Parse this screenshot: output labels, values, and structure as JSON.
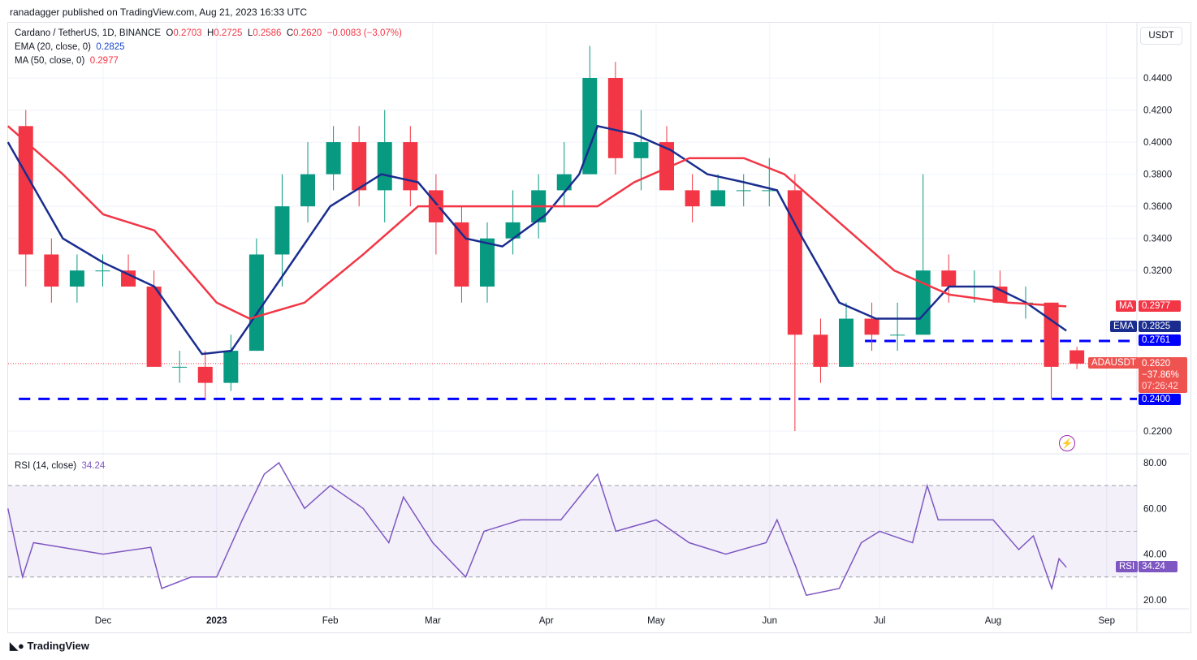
{
  "header": {
    "published": "ranadagger published on TradingView.com, Aug 21, 2023 16:33 UTC"
  },
  "legend": {
    "symbol": "Cardano / TetherUS, 1D, BINANCE",
    "o_label": "O",
    "o": "0.2703",
    "h_label": "H",
    "h": "0.2725",
    "l_label": "L",
    "l": "0.2586",
    "c_label": "C",
    "c": "0.2620",
    "change": "−0.0083 (−3.07%)",
    "ema_label": "EMA (20, close, 0)",
    "ema": "0.2825",
    "ma_label": "MA (50, close, 0)",
    "ma": "0.2977",
    "rsi_label": "RSI (14, close)",
    "rsi": "34.24"
  },
  "scale": {
    "currency": "USDT",
    "ma_tag": "MA",
    "ma_val": "0.2977",
    "ema_tag": "EMA",
    "ema_val": "0.2825",
    "lvl1": "0.2761",
    "sym_tag": "ADAUSDT",
    "price": "0.2620",
    "pct": "−37.86%",
    "countdown": "07:26:42",
    "lvl2": "0.2400",
    "rsi_tag": "RSI",
    "rsi_val": "34.24"
  },
  "logo": "TradingView",
  "colors": {
    "up": "#089981",
    "down": "#f23645",
    "ema": "#1a2d8f",
    "ma": "#f23645",
    "rsi": "#7e57c2",
    "level": "#0000ff"
  },
  "chart_data": [
    {
      "type": "candlestick",
      "title": "Cardano / TetherUS, 1D, BINANCE",
      "ylabel": "USDT",
      "ylim": [
        0.19,
        0.46
      ],
      "price_ticks": [
        0.22,
        0.32,
        0.34,
        0.36,
        0.38,
        0.4,
        0.42,
        0.44
      ],
      "time_ticks": [
        [
          "2022-12-01",
          "Dec"
        ],
        [
          "2023-01-01",
          "2023"
        ],
        [
          "2023-02-01",
          "Feb"
        ],
        [
          "2023-03-01",
          "Mar"
        ],
        [
          "2023-04-01",
          "Apr"
        ],
        [
          "2023-05-01",
          "May"
        ],
        [
          "2023-06-01",
          "Jun"
        ],
        [
          "2023-07-01",
          "Jul"
        ],
        [
          "2023-08-01",
          "Aug"
        ],
        [
          "2023-09-01",
          "Sep"
        ]
      ],
      "levels": [
        {
          "value": 0.2761,
          "from": "2023-06-27"
        },
        {
          "value": 0.24,
          "from": "2022-11-08"
        }
      ],
      "candles_weekly": [
        [
          "2022-11-07",
          0.41,
          0.42,
          0.31,
          0.33
        ],
        [
          "2022-11-14",
          0.33,
          0.34,
          0.3,
          0.31
        ],
        [
          "2022-11-21",
          0.31,
          0.33,
          0.3,
          0.32
        ],
        [
          "2022-11-28",
          0.32,
          0.33,
          0.31,
          0.32
        ],
        [
          "2022-12-05",
          0.32,
          0.33,
          0.31,
          0.31
        ],
        [
          "2022-12-12",
          0.31,
          0.32,
          0.26,
          0.26
        ],
        [
          "2022-12-19",
          0.26,
          0.27,
          0.25,
          0.26
        ],
        [
          "2022-12-26",
          0.26,
          0.27,
          0.24,
          0.25
        ],
        [
          "2023-01-02",
          0.25,
          0.28,
          0.245,
          0.27
        ],
        [
          "2023-01-09",
          0.27,
          0.34,
          0.27,
          0.33
        ],
        [
          "2023-01-16",
          0.33,
          0.38,
          0.31,
          0.36
        ],
        [
          "2023-01-23",
          0.36,
          0.4,
          0.35,
          0.38
        ],
        [
          "2023-01-30",
          0.38,
          0.41,
          0.37,
          0.4
        ],
        [
          "2023-02-06",
          0.4,
          0.41,
          0.36,
          0.37
        ],
        [
          "2023-02-13",
          0.37,
          0.42,
          0.35,
          0.4
        ],
        [
          "2023-02-20",
          0.4,
          0.41,
          0.36,
          0.37
        ],
        [
          "2023-02-27",
          0.37,
          0.38,
          0.33,
          0.35
        ],
        [
          "2023-03-06",
          0.35,
          0.36,
          0.3,
          0.31
        ],
        [
          "2023-03-13",
          0.31,
          0.35,
          0.3,
          0.34
        ],
        [
          "2023-03-20",
          0.34,
          0.37,
          0.33,
          0.35
        ],
        [
          "2023-03-27",
          0.35,
          0.38,
          0.34,
          0.37
        ],
        [
          "2023-04-03",
          0.37,
          0.4,
          0.36,
          0.38
        ],
        [
          "2023-04-10",
          0.38,
          0.46,
          0.38,
          0.44
        ],
        [
          "2023-04-17",
          0.44,
          0.45,
          0.38,
          0.39
        ],
        [
          "2023-04-24",
          0.39,
          0.42,
          0.37,
          0.4
        ],
        [
          "2023-05-01",
          0.4,
          0.41,
          0.37,
          0.37
        ],
        [
          "2023-05-08",
          0.37,
          0.38,
          0.35,
          0.36
        ],
        [
          "2023-05-15",
          0.36,
          0.38,
          0.36,
          0.37
        ],
        [
          "2023-05-22",
          0.37,
          0.38,
          0.36,
          0.37
        ],
        [
          "2023-05-29",
          0.37,
          0.39,
          0.36,
          0.37
        ],
        [
          "2023-06-05",
          0.37,
          0.38,
          0.22,
          0.28
        ],
        [
          "2023-06-12",
          0.28,
          0.29,
          0.25,
          0.26
        ],
        [
          "2023-06-19",
          0.26,
          0.3,
          0.26,
          0.29
        ],
        [
          "2023-06-26",
          0.29,
          0.3,
          0.27,
          0.28
        ],
        [
          "2023-07-03",
          0.28,
          0.3,
          0.27,
          0.28
        ],
        [
          "2023-07-10",
          0.28,
          0.38,
          0.28,
          0.32
        ],
        [
          "2023-07-17",
          0.32,
          0.33,
          0.3,
          0.31
        ],
        [
          "2023-07-24",
          0.31,
          0.32,
          0.3,
          0.31
        ],
        [
          "2023-07-31",
          0.31,
          0.32,
          0.3,
          0.3
        ],
        [
          "2023-08-07",
          0.3,
          0.31,
          0.29,
          0.3
        ],
        [
          "2023-08-14",
          0.3,
          0.3,
          0.24,
          0.26
        ],
        [
          "2023-08-21",
          0.2703,
          0.2725,
          0.2586,
          0.262
        ]
      ],
      "series": [
        {
          "name": "EMA (20, close, 0)",
          "points": [
            [
              "2022-11-05",
              0.4
            ],
            [
              "2022-11-20",
              0.34
            ],
            [
              "2022-12-01",
              0.325
            ],
            [
              "2022-12-15",
              0.31
            ],
            [
              "2022-12-28",
              0.268
            ],
            [
              "2023-01-05",
              0.27
            ],
            [
              "2023-01-20",
              0.32
            ],
            [
              "2023-02-01",
              0.36
            ],
            [
              "2023-02-15",
              0.38
            ],
            [
              "2023-02-25",
              0.375
            ],
            [
              "2023-03-10",
              0.34
            ],
            [
              "2023-03-20",
              0.335
            ],
            [
              "2023-04-01",
              0.355
            ],
            [
              "2023-04-10",
              0.38
            ],
            [
              "2023-04-15",
              0.41
            ],
            [
              "2023-04-25",
              0.405
            ],
            [
              "2023-05-05",
              0.395
            ],
            [
              "2023-05-15",
              0.38
            ],
            [
              "2023-05-25",
              0.375
            ],
            [
              "2023-06-03",
              0.37
            ],
            [
              "2023-06-10",
              0.34
            ],
            [
              "2023-06-20",
              0.3
            ],
            [
              "2023-06-30",
              0.29
            ],
            [
              "2023-07-12",
              0.29
            ],
            [
              "2023-07-20",
              0.31
            ],
            [
              "2023-08-01",
              0.31
            ],
            [
              "2023-08-10",
              0.3
            ],
            [
              "2023-08-21",
              0.2825
            ]
          ]
        },
        {
          "name": "MA (50, close, 0)",
          "points": [
            [
              "2022-11-05",
              0.41
            ],
            [
              "2022-11-20",
              0.38
            ],
            [
              "2022-12-01",
              0.355
            ],
            [
              "2022-12-15",
              0.345
            ],
            [
              "2023-01-01",
              0.3
            ],
            [
              "2023-01-10",
              0.29
            ],
            [
              "2023-01-25",
              0.3
            ],
            [
              "2023-02-10",
              0.33
            ],
            [
              "2023-02-25",
              0.36
            ],
            [
              "2023-03-15",
              0.36
            ],
            [
              "2023-04-01",
              0.36
            ],
            [
              "2023-04-15",
              0.36
            ],
            [
              "2023-04-25",
              0.375
            ],
            [
              "2023-05-10",
              0.39
            ],
            [
              "2023-05-25",
              0.39
            ],
            [
              "2023-06-05",
              0.38
            ],
            [
              "2023-06-20",
              0.35
            ],
            [
              "2023-07-05",
              0.32
            ],
            [
              "2023-07-20",
              0.305
            ],
            [
              "2023-08-05",
              0.3
            ],
            [
              "2023-08-21",
              0.2977
            ]
          ]
        }
      ]
    },
    {
      "type": "line",
      "title": "RSI (14, close)",
      "ylim": [
        15,
        85
      ],
      "ticks": [
        20,
        40,
        60,
        80
      ],
      "band": [
        30,
        70
      ],
      "mid": 50,
      "series": [
        {
          "name": "RSI",
          "points": [
            [
              "2022-11-05",
              60
            ],
            [
              "2022-11-09",
              30
            ],
            [
              "2022-11-12",
              45
            ],
            [
              "2022-12-01",
              40
            ],
            [
              "2022-12-14",
              43
            ],
            [
              "2022-12-17",
              25
            ],
            [
              "2022-12-25",
              30
            ],
            [
              "2023-01-01",
              30
            ],
            [
              "2023-01-08",
              55
            ],
            [
              "2023-01-14",
              75
            ],
            [
              "2023-01-18",
              80
            ],
            [
              "2023-01-25",
              60
            ],
            [
              "2023-02-01",
              70
            ],
            [
              "2023-02-10",
              60
            ],
            [
              "2023-02-17",
              45
            ],
            [
              "2023-02-21",
              65
            ],
            [
              "2023-03-01",
              45
            ],
            [
              "2023-03-10",
              30
            ],
            [
              "2023-03-15",
              50
            ],
            [
              "2023-03-25",
              55
            ],
            [
              "2023-04-05",
              55
            ],
            [
              "2023-04-10",
              65
            ],
            [
              "2023-04-15",
              75
            ],
            [
              "2023-04-20",
              50
            ],
            [
              "2023-05-01",
              55
            ],
            [
              "2023-05-10",
              45
            ],
            [
              "2023-05-20",
              40
            ],
            [
              "2023-05-31",
              45
            ],
            [
              "2023-06-03",
              55
            ],
            [
              "2023-06-08",
              35
            ],
            [
              "2023-06-11",
              22
            ],
            [
              "2023-06-20",
              25
            ],
            [
              "2023-06-26",
              45
            ],
            [
              "2023-07-01",
              50
            ],
            [
              "2023-07-10",
              45
            ],
            [
              "2023-07-14",
              70
            ],
            [
              "2023-07-17",
              55
            ],
            [
              "2023-08-01",
              55
            ],
            [
              "2023-08-08",
              42
            ],
            [
              "2023-08-12",
              48
            ],
            [
              "2023-08-17",
              25
            ],
            [
              "2023-08-19",
              38
            ],
            [
              "2023-08-21",
              34.24
            ]
          ]
        }
      ]
    }
  ]
}
